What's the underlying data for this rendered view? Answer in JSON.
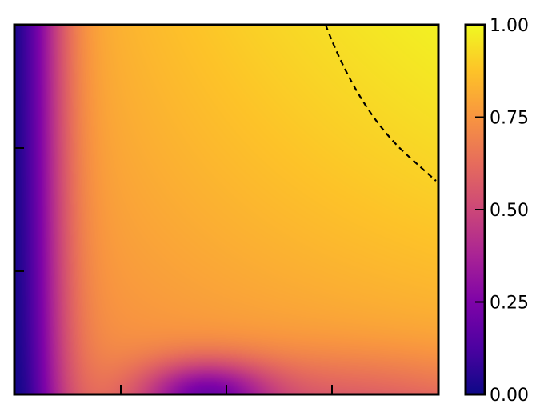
{
  "chart_data": {
    "type": "heatmap",
    "title": "",
    "xlabel": "",
    "ylabel": "",
    "colormap": "plasma",
    "x_ticks": [
      "",
      "",
      ""
    ],
    "y_ticks": [
      "",
      ""
    ],
    "colorbar": {
      "min": 0.0,
      "max": 1.0,
      "ticks": [
        "0.00",
        "0.25",
        "0.50",
        "0.75",
        "1.00"
      ],
      "tick_values": [
        0.0,
        0.25,
        0.5,
        0.75,
        1.0
      ]
    },
    "contour": {
      "style": "dashed",
      "color": "#000000"
    }
  }
}
